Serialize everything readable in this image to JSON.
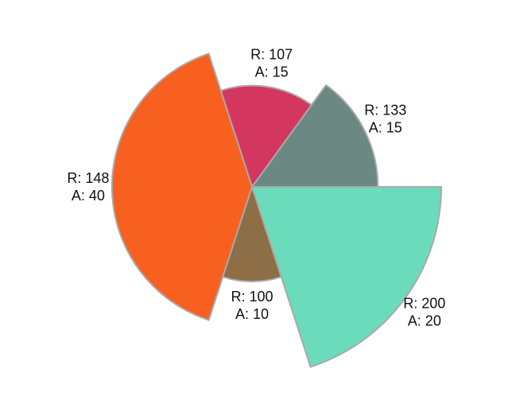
{
  "chart_data": {
    "type": "polar-area",
    "title": "",
    "angle_unit": "degrees",
    "start_direction": "east",
    "rotation": "counterclockwise",
    "slices": [
      {
        "r": 133,
        "angle": 15,
        "color": "#6b8882"
      },
      {
        "r": 107,
        "angle": 15,
        "color": "#d3375f"
      },
      {
        "r": 148,
        "angle": 40,
        "color": "#f8601f"
      },
      {
        "r": 100,
        "angle": 10,
        "color": "#8d6e46"
      },
      {
        "r": 200,
        "angle": 20,
        "color": "#6adcbc"
      }
    ],
    "labels": [
      {
        "line1": "R: 133",
        "line2": "A: 15"
      },
      {
        "line1": "R: 107",
        "line2": "A: 15"
      },
      {
        "line1": "R: 148",
        "line2": "A: 40"
      },
      {
        "line1": "R: 100",
        "line2": "A: 10"
      },
      {
        "line1": "R: 200",
        "line2": "A: 20"
      }
    ],
    "stroke_color": "#a9a9a9",
    "legend": "none",
    "grid": false
  }
}
